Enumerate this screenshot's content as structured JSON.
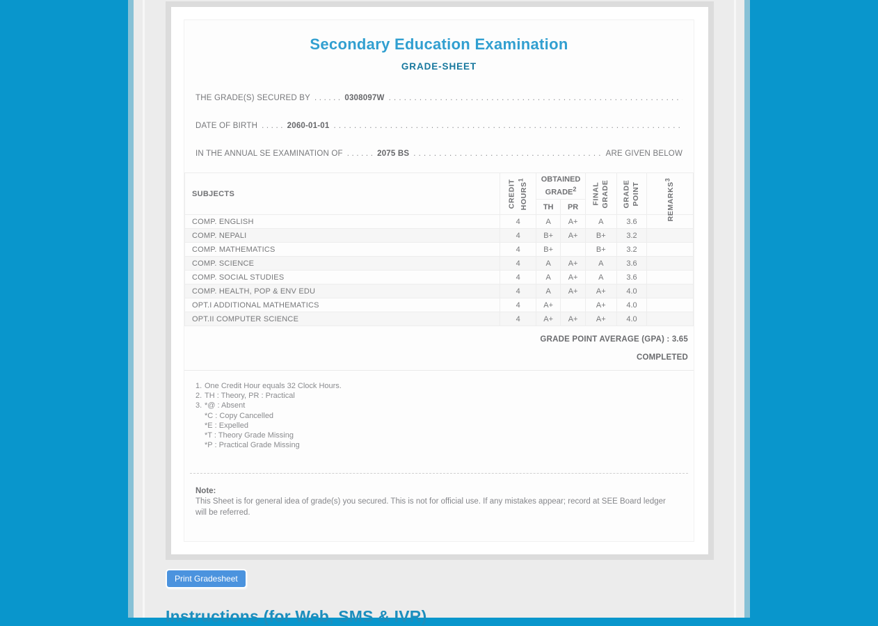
{
  "header": {
    "title": "Secondary Education Examination",
    "subtitle": "GRADE-SHEET"
  },
  "info_lines": [
    {
      "label": "THE GRADE(S) SECURED BY",
      "leader": ". . . . . .",
      "value": "0308097W",
      "right": ""
    },
    {
      "label": "DATE OF BIRTH",
      "leader": ". . . . .",
      "value": "2060-01-01",
      "right": ""
    },
    {
      "label": "IN THE ANNUAL SE EXAMINATION OF",
      "leader": ". . . . . .",
      "value": "2075 BS",
      "right": "ARE GIVEN BELOW"
    }
  ],
  "filler_dot": ". ",
  "table": {
    "headers": {
      "subjects": "SUBJECTS",
      "credit_line1": "CREDIT",
      "credit_line2": "HOURS",
      "credit_sup": "1",
      "obtained_line1": "OBTAINED",
      "obtained_line2": "GRADE",
      "obtained_sup": "2",
      "th": "TH",
      "pr": "PR",
      "final_line1": "FINAL",
      "final_line2": "GRADE",
      "gp_line1": "GRADE",
      "gp_line2": "POINT",
      "remarks": "REMARKS",
      "remarks_sup": "3"
    },
    "rows": [
      {
        "subject": "COMP. ENGLISH",
        "credit": "4",
        "th": "A",
        "pr": "A+",
        "final": "A",
        "gp": "3.6",
        "remarks": ""
      },
      {
        "subject": "COMP. NEPALI",
        "credit": "4",
        "th": "B+",
        "pr": "A+",
        "final": "B+",
        "gp": "3.2",
        "remarks": ""
      },
      {
        "subject": "COMP. MATHEMATICS",
        "credit": "4",
        "th": "B+",
        "pr": "",
        "final": "B+",
        "gp": "3.2",
        "remarks": ""
      },
      {
        "subject": "COMP. SCIENCE",
        "credit": "4",
        "th": "A",
        "pr": "A+",
        "final": "A",
        "gp": "3.6",
        "remarks": ""
      },
      {
        "subject": "COMP. SOCIAL STUDIES",
        "credit": "4",
        "th": "A",
        "pr": "A+",
        "final": "A",
        "gp": "3.6",
        "remarks": ""
      },
      {
        "subject": "COMP. HEALTH, POP & ENV EDU",
        "credit": "4",
        "th": "A",
        "pr": "A+",
        "final": "A+",
        "gp": "4.0",
        "remarks": ""
      },
      {
        "subject": "OPT.I ADDITIONAL MATHEMATICS",
        "credit": "4",
        "th": "A+",
        "pr": "",
        "final": "A+",
        "gp": "4.0",
        "remarks": ""
      },
      {
        "subject": "OPT.II COMPUTER SCIENCE",
        "credit": "4",
        "th": "A+",
        "pr": "A+",
        "final": "A+",
        "gp": "4.0",
        "remarks": ""
      }
    ]
  },
  "summary": {
    "gpa_label": "GRADE POINT AVERAGE (GPA) : 3.65",
    "status": "COMPLETED"
  },
  "footnotes": [
    {
      "num": "1.",
      "lines": [
        "One Credit Hour equals 32 Clock Hours."
      ]
    },
    {
      "num": "2.",
      "lines": [
        "TH : Theory, PR : Practical"
      ]
    },
    {
      "num": "3.",
      "lines": [
        "*@ : Absent",
        "*C : Copy Cancelled",
        "*E : Expelled",
        "*T : Theory Grade Missing",
        "*P : Practical Grade Missing"
      ]
    }
  ],
  "note": {
    "title": "Note:",
    "body": "This Sheet is for general idea of grade(s) you secured. This is not for official use. If any mistakes appear; record at SEE Board ledger will be referred."
  },
  "actions": {
    "print_button": "Print Gradesheet"
  },
  "footer_heading": "Instructions (for Web, SMS & IVR)",
  "colors": {
    "page_background": "#0996cc",
    "side_border": "#87c1d6",
    "content_gray": "#ececec",
    "panel_border": "#dcdcdc",
    "title_blue": "#319fd0",
    "subtitle_teal": "#17789e",
    "button_blue": "#4b93de",
    "text_gray": "#77787b"
  }
}
